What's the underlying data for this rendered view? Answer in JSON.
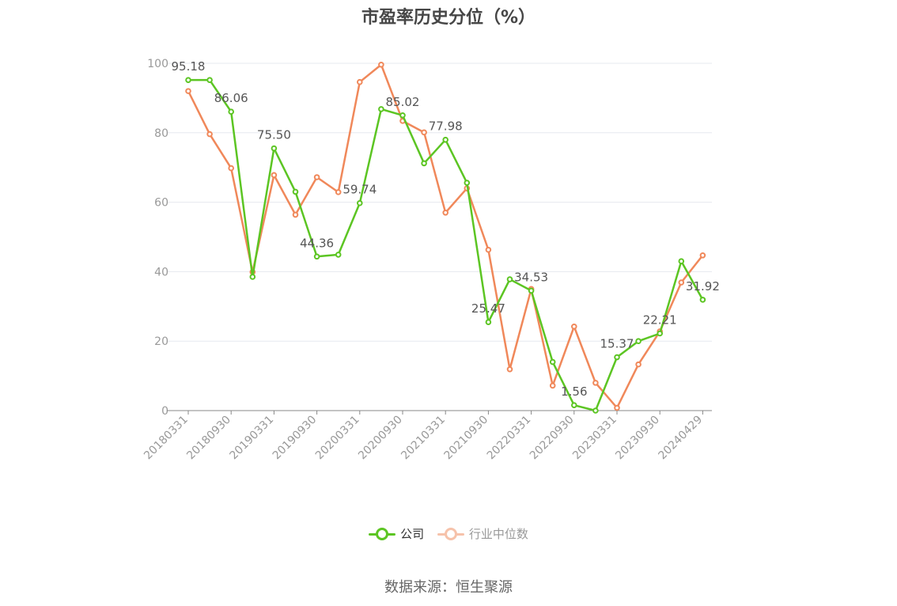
{
  "title": "市盈率历史分位（%）",
  "source": "数据来源：恒生聚源",
  "legend_items": [
    "公司",
    "行业中位数"
  ],
  "chart_data": {
    "type": "line",
    "title": "市盈率历史分位（%）",
    "ylim": [
      0,
      100
    ],
    "y_ticks": [
      0,
      20,
      40,
      60,
      80,
      100
    ],
    "x_tick_labels": [
      "20180331",
      "20180930",
      "20190331",
      "20190930",
      "20200331",
      "20200930",
      "20210331",
      "20210930",
      "20220331",
      "20220930",
      "20230331",
      "20230930",
      "20240429"
    ],
    "x": [
      "20180331",
      "",
      "20180930",
      "",
      "20190331",
      "",
      "20190930",
      "",
      "20200331",
      "",
      "20200930",
      "",
      "20210331",
      "",
      "20210930",
      "",
      "20220331",
      "",
      "20220930",
      "",
      "20230331",
      "",
      "20230930",
      "",
      "20240429"
    ],
    "grid": true,
    "legend_position": "bottom",
    "series": [
      {
        "name": "公司",
        "color": "#5cc523",
        "values": [
          95.18,
          95.18,
          86.06,
          38.5,
          75.5,
          63.0,
          44.36,
          44.9,
          59.74,
          86.8,
          85.02,
          71.2,
          77.98,
          65.6,
          25.47,
          37.8,
          34.53,
          14.0,
          1.56,
          0.0,
          15.37,
          20.0,
          22.21,
          43.0,
          31.92
        ],
        "labels": [
          "95.18",
          "",
          "86.06",
          "",
          "75.50",
          "",
          "44.36",
          "",
          "59.74",
          "",
          "85.02",
          "",
          "77.98",
          "",
          "25.47",
          "",
          "34.53",
          "",
          "1.56",
          "",
          "15.37",
          "",
          "22.21",
          "",
          "31.92"
        ]
      },
      {
        "name": "行业中位数",
        "color": "#f0885a",
        "values": [
          92.0,
          79.6,
          69.8,
          39.9,
          67.8,
          56.4,
          67.2,
          62.9,
          94.6,
          99.6,
          83.4,
          80.1,
          57.0,
          64.0,
          46.3,
          11.9,
          35.0,
          7.2,
          24.2,
          8.0,
          0.8,
          13.3,
          22.8,
          36.9,
          44.7
        ]
      }
    ]
  }
}
